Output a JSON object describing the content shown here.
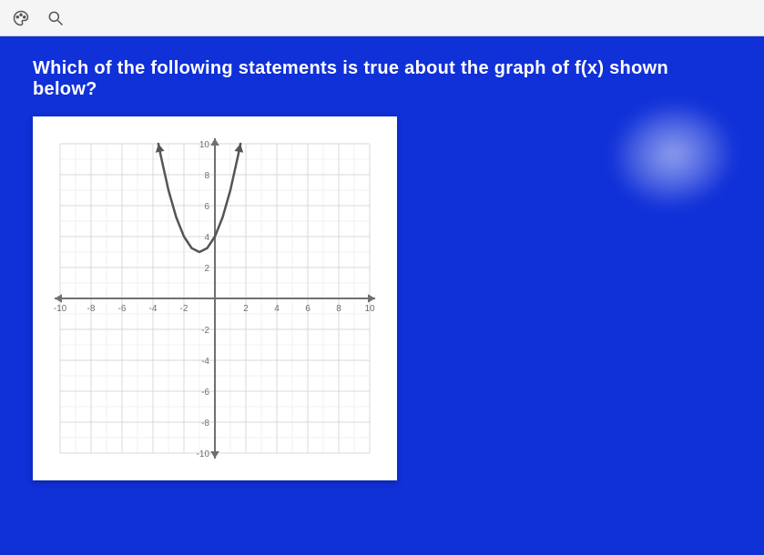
{
  "toolbar": {
    "background_color": "#f5f5f5",
    "border_color": "#d0d0d0",
    "icon_color": "#555555"
  },
  "question": {
    "text": "Which of the following statements is true about the graph of f(x) shown below?",
    "font_size": 20,
    "font_weight": "bold",
    "color": "#ffffff"
  },
  "content": {
    "background_color": "#1030d8"
  },
  "chart": {
    "type": "line",
    "structure": "cartesian-grid-with-parabola",
    "panel_bg": "#ffffff",
    "grid_color": "#d8d8d8",
    "minor_grid_color": "#f2f2f2",
    "axis_color": "#707070",
    "axis_width": 2,
    "arrow_size": 8,
    "xlim": [
      -10,
      10
    ],
    "ylim": [
      -10,
      10
    ],
    "xtick_step": 2,
    "ytick_step": 2,
    "xtick_labels": [
      "-10",
      "-8",
      "-6",
      "-4",
      "-2",
      "2",
      "4",
      "6",
      "8",
      "10"
    ],
    "ytick_labels": [
      "10",
      "8",
      "6",
      "4",
      "2",
      "-2",
      "-4",
      "-6",
      "-8",
      "-10"
    ],
    "tick_font_size": 10,
    "tick_color": "#707070",
    "curve": {
      "type": "parabola",
      "equation_hint": "y = (x+1)^2 + 3  (approx, clipped near top)",
      "vertex": {
        "x": -1,
        "y": 3
      },
      "a": 1,
      "x_samples": [
        -3.65,
        -3.5,
        -3,
        -2.5,
        -2,
        -1.5,
        -1,
        -0.5,
        0,
        0.5,
        1,
        1.5,
        1.65
      ],
      "y_samples": [
        10.0,
        9.25,
        7.0,
        5.25,
        4.0,
        3.25,
        3.0,
        3.25,
        4.0,
        5.25,
        7.0,
        9.25,
        10.0
      ],
      "stroke_color": "#555555",
      "stroke_width": 2.5,
      "end_arrows": true
    },
    "svg_viewbox": "0 0 380 380",
    "plot_margin": 20
  }
}
